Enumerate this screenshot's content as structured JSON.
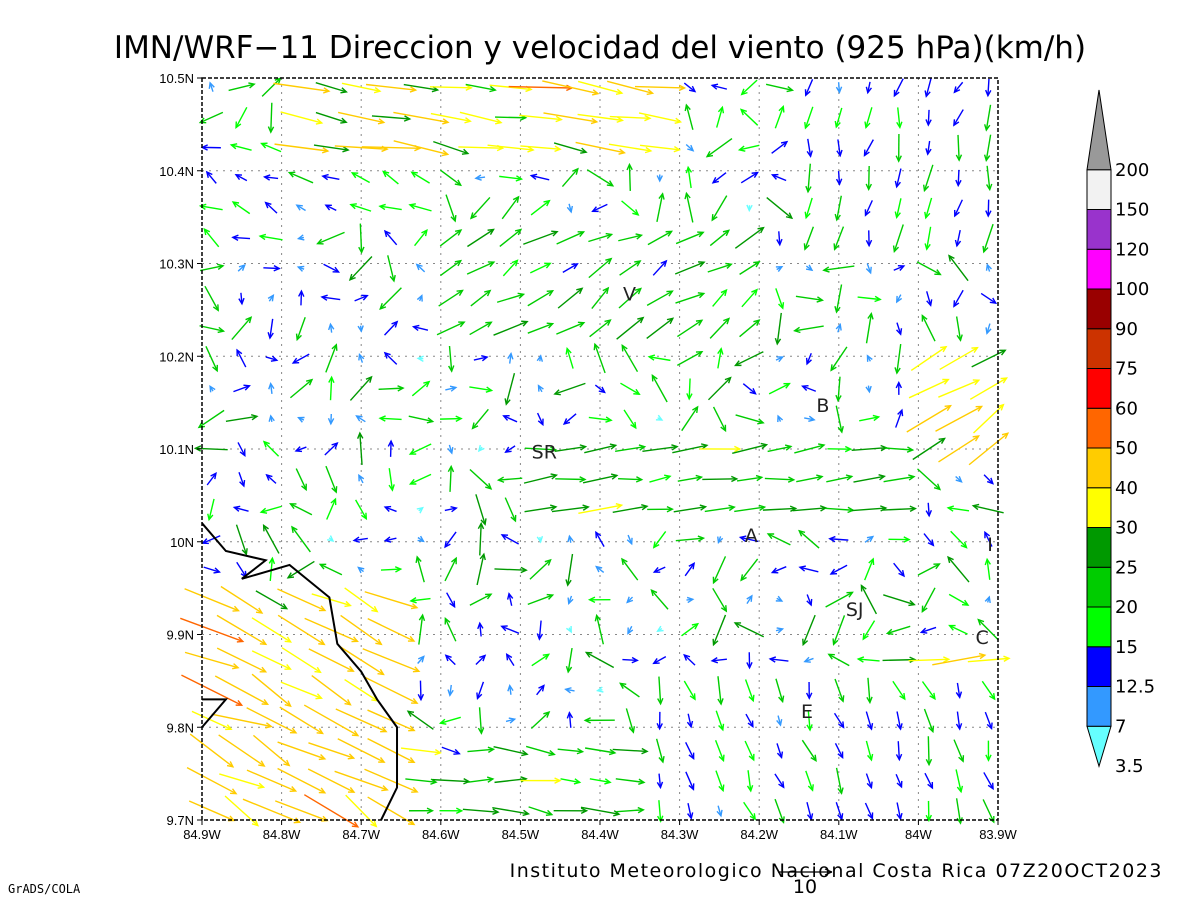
{
  "title": "IMN/WRF−11 Direccion y velocidad del viento (925 hPa)(km/h)",
  "credit": "Instituto Meteorologico Nacional Costa Rica 07Z20OCT2023",
  "software": "GrADS/COLA",
  "reference_vector": {
    "label": "10",
    "value": 10
  },
  "map": {
    "lon_range": [
      -84.9,
      -83.9
    ],
    "lat_range": [
      9.7,
      10.5
    ],
    "grid": true,
    "lon_ticks": [
      {
        "value": -84.9,
        "label": "84.9W"
      },
      {
        "value": -84.8,
        "label": "84.8W"
      },
      {
        "value": -84.7,
        "label": "84.7W"
      },
      {
        "value": -84.6,
        "label": "84.6W"
      },
      {
        "value": -84.5,
        "label": "84.5W"
      },
      {
        "value": -84.4,
        "label": "84.4W"
      },
      {
        "value": -84.3,
        "label": "84.3W"
      },
      {
        "value": -84.2,
        "label": "84.2W"
      },
      {
        "value": -84.1,
        "label": "84.1W"
      },
      {
        "value": -84.0,
        "label": "84W"
      },
      {
        "value": -83.9,
        "label": "83.9W"
      }
    ],
    "lat_ticks": [
      {
        "value": 9.7,
        "label": "9.7N"
      },
      {
        "value": 9.8,
        "label": "9.8N"
      },
      {
        "value": 9.9,
        "label": "9.9N"
      },
      {
        "value": 10.0,
        "label": "10N"
      },
      {
        "value": 10.1,
        "label": "10.1N"
      },
      {
        "value": 10.2,
        "label": "10.2N"
      },
      {
        "value": 10.3,
        "label": "10.3N"
      },
      {
        "value": 10.4,
        "label": "10.4N"
      },
      {
        "value": 10.5,
        "label": "10.5N"
      }
    ],
    "cities": [
      {
        "label": "V",
        "lon": -84.363,
        "lat": 10.26
      },
      {
        "label": "SR",
        "lon": -84.47,
        "lat": 10.09
      },
      {
        "label": "B",
        "lon": -84.12,
        "lat": 10.14
      },
      {
        "label": "A",
        "lon": -84.21,
        "lat": 10.0
      },
      {
        "label": "SJ",
        "lon": -84.08,
        "lat": 9.92
      },
      {
        "label": "C",
        "lon": -83.92,
        "lat": 9.89
      },
      {
        "label": "E",
        "lon": -84.14,
        "lat": 9.81
      },
      {
        "label": "I",
        "lon": -83.91,
        "lat": 9.99
      }
    ],
    "coastline": [
      [
        [
          -84.9,
          10.02
        ],
        [
          -84.87,
          9.99
        ],
        [
          -84.82,
          9.98
        ],
        [
          -84.85,
          9.96
        ],
        [
          -84.79,
          9.975
        ],
        [
          -84.74,
          9.94
        ],
        [
          -84.73,
          9.89
        ],
        [
          -84.7,
          9.86
        ],
        [
          -84.68,
          9.83
        ],
        [
          -84.655,
          9.8
        ],
        [
          -84.655,
          9.735
        ],
        [
          -84.675,
          9.7
        ]
      ],
      [
        [
          -84.9,
          9.8
        ],
        [
          -84.87,
          9.83
        ],
        [
          -84.9,
          9.83
        ]
      ]
    ]
  },
  "legend": {
    "levels": [
      "3.5",
      "7",
      "12.5",
      "15",
      "20",
      "25",
      "30",
      "40",
      "50",
      "60",
      "75",
      "90",
      "100",
      "120",
      "150",
      "200"
    ],
    "colors": [
      "#66ffff",
      "#3399ff",
      "#0000ff",
      "#00ff00",
      "#00cc00",
      "#009900",
      "#ffff00",
      "#ffcc00",
      "#ff6600",
      "#ff0000",
      "#cc3300",
      "#990000",
      "#ff00ff",
      "#9933cc",
      "#f2f2f2",
      "#999999"
    ],
    "extend": "both"
  },
  "wind_field": {
    "regions": [
      {
        "name": "north-westerly-belt",
        "lon": [
          -84.8,
          -84.3
        ],
        "lat": [
          10.42,
          10.5
        ],
        "u": 30,
        "v": -4
      },
      {
        "name": "northeast-northerly",
        "lon": [
          -84.15,
          -83.9
        ],
        "lat": [
          10.3,
          10.5
        ],
        "u": -2,
        "v": -12
      },
      {
        "name": "west-flow",
        "lon": [
          -84.9,
          -84.6
        ],
        "lat": [
          10.35,
          10.45
        ],
        "u": -10,
        "v": 4
      },
      {
        "name": "central-northeasterly",
        "lon": [
          -84.6,
          -84.2
        ],
        "lat": [
          10.2,
          10.35
        ],
        "u": 15,
        "v": 9
      },
      {
        "name": "southwest-offshore",
        "lon": [
          -84.9,
          -84.65
        ],
        "lat": [
          9.7,
          9.95
        ],
        "u": 30,
        "v": -15
      },
      {
        "name": "central-easterly",
        "lon": [
          -84.5,
          -84.0
        ],
        "lat": [
          10.02,
          10.12
        ],
        "u": 20,
        "v": 2
      },
      {
        "name": "eastern-coast-northeasterly",
        "lon": [
          -84.0,
          -83.9
        ],
        "lat": [
          10.1,
          10.2
        ],
        "u": 25,
        "v": 15
      },
      {
        "name": "southeast-southerly",
        "lon": [
          -84.35,
          -83.9
        ],
        "lat": [
          9.7,
          9.85
        ],
        "u": 4,
        "v": -12
      },
      {
        "name": "south-central-westerly",
        "lon": [
          -84.65,
          -84.35
        ],
        "lat": [
          9.7,
          9.8
        ],
        "u": 18,
        "v": -2
      },
      {
        "name": "cartago-easterly",
        "lon": [
          -84.0,
          -83.9
        ],
        "lat": [
          9.8,
          9.9
        ],
        "u": 28,
        "v": 4
      }
    ]
  }
}
